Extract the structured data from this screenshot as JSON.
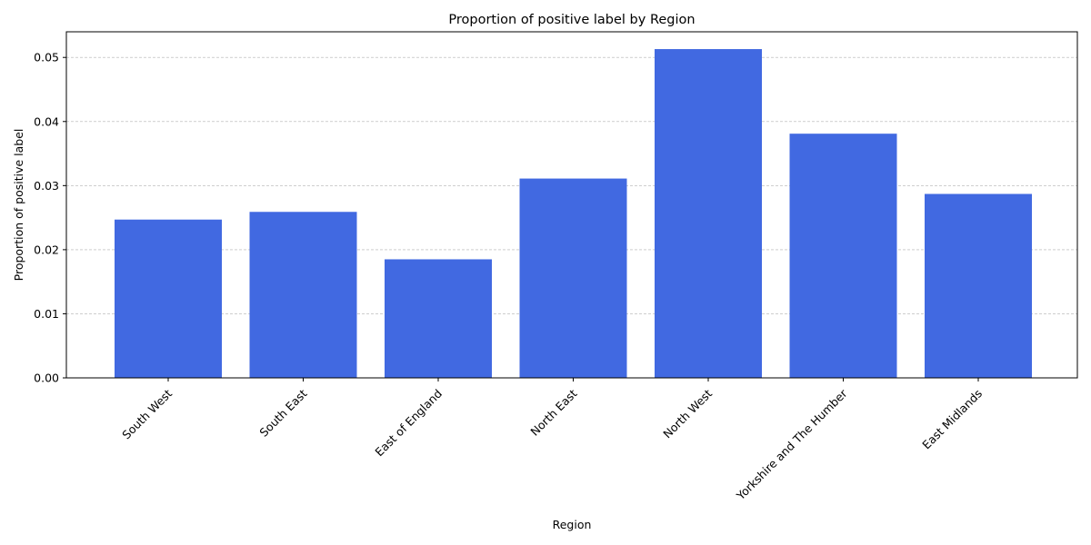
{
  "chart_data": {
    "type": "bar",
    "title": "Proportion of positive label by Region",
    "xlabel": "Region",
    "ylabel": "Proportion of positive label",
    "categories": [
      "South West",
      "South East",
      "East of England",
      "North East",
      "North West",
      "Yorkshire and The Humber",
      "East Midlands"
    ],
    "values": [
      0.0247,
      0.0259,
      0.0185,
      0.0311,
      0.0513,
      0.0381,
      0.0287
    ],
    "ylim": [
      0,
      0.054
    ],
    "yticks": [
      "0.00",
      "0.01",
      "0.02",
      "0.03",
      "0.04",
      "0.05"
    ],
    "grid": "horizontal dashed",
    "bar_color": "#4169e1",
    "x_tick_rotation": "45 degrees"
  }
}
